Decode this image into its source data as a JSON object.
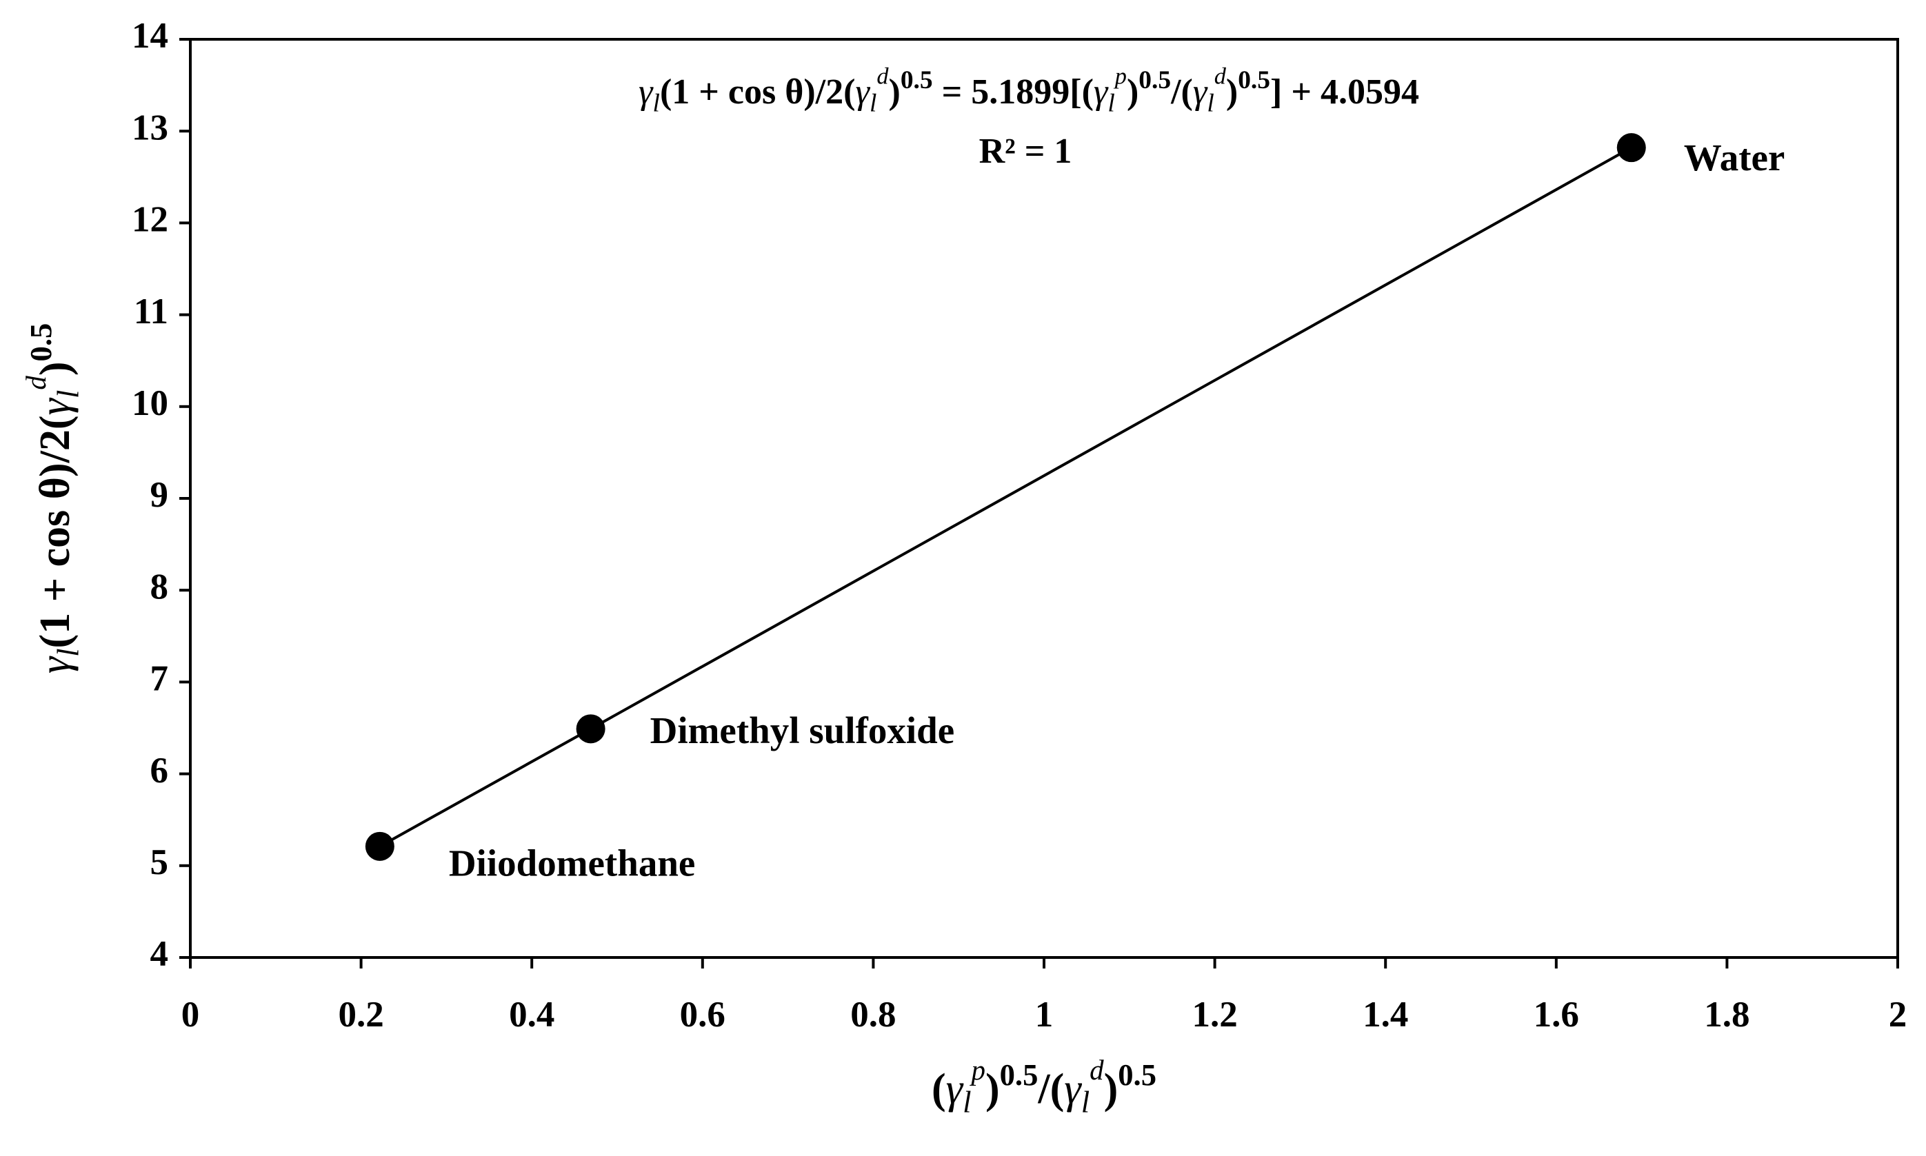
{
  "chart_data": {
    "type": "scatter",
    "equation": [
      "γ",
      "l",
      "(1 + cos θ)/2(",
      "γ",
      "l",
      "d",
      ")",
      "0.5",
      " = 5.1899[(",
      "γ",
      "l",
      "p",
      ")",
      "0.5",
      "/(",
      "γ",
      "l",
      "d",
      ")",
      "0.5",
      "] + 4.0594"
    ],
    "r_squared": "R² = 1",
    "x_label": [
      "(",
      "γ",
      "l",
      "p",
      ")",
      "0.5",
      "/(",
      "γ",
      "l",
      "d",
      ")",
      "0.5"
    ],
    "y_label": [
      "γ",
      "l",
      "(1 + cos θ)/2(",
      "γ",
      "l",
      "d",
      ")",
      "0.5"
    ],
    "series": [
      {
        "color": "#000000",
        "labels": [
          "Diiodomethane",
          "Dimethyl sulfoxide",
          "Water"
        ],
        "x": [
          0.222,
          0.469,
          1.688
        ],
        "values": [
          5.21,
          6.49,
          12.82
        ]
      }
    ],
    "xlim": [
      0,
      2
    ],
    "xticks": [
      0,
      0.2,
      0.4,
      0.6,
      0.8,
      1,
      1.2,
      1.4,
      1.6,
      1.8,
      2
    ],
    "ylim": [
      4,
      14
    ],
    "yticks": [
      4,
      5,
      6,
      7,
      8,
      9,
      10,
      11,
      12,
      13,
      14
    ],
    "grid": false
  }
}
